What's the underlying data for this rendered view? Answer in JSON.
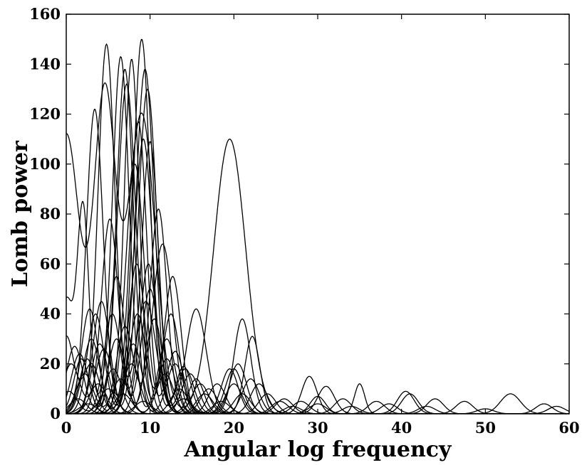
{
  "chart_data": {
    "type": "line",
    "title": "",
    "xlabel": "Angular log frequency",
    "ylabel": "Lomb power",
    "xlim": [
      0,
      60
    ],
    "ylim": [
      0,
      160
    ],
    "xticks": [
      0,
      10,
      20,
      30,
      40,
      50,
      60
    ],
    "yticks": [
      0,
      20,
      40,
      60,
      80,
      100,
      120,
      140,
      160
    ],
    "grid": false,
    "legend": "none",
    "line_color": "#000000",
    "series": [
      {
        "peaks": [
          [
            0,
            112,
            1.6
          ],
          [
            4.6,
            128,
            1.3
          ],
          [
            9,
            120,
            1.6
          ],
          [
            19.5,
            110,
            1.9
          ],
          [
            35,
            12,
            0.6
          ],
          [
            53,
            8,
            1.2
          ]
        ]
      },
      {
        "peaks": [
          [
            4.8,
            148,
            1.0
          ],
          [
            9.5,
            45,
            1.2
          ],
          [
            15.5,
            14,
            0.9
          ],
          [
            28,
            5,
            1.0
          ]
        ]
      },
      {
        "peaks": [
          [
            9.0,
            150,
            1.0
          ],
          [
            3.5,
            40,
            1.0
          ],
          [
            14,
            19,
            0.9
          ],
          [
            30,
            7,
            0.9
          ]
        ]
      },
      {
        "peaks": [
          [
            6.5,
            143,
            1.0
          ],
          [
            12,
            30,
            1.0
          ],
          [
            21,
            8,
            1.0
          ]
        ]
      },
      {
        "peaks": [
          [
            7.8,
            142,
            0.9
          ],
          [
            2.5,
            22,
            0.9
          ],
          [
            17,
            10,
            1.0
          ]
        ]
      },
      {
        "peaks": [
          [
            7.0,
            138,
            1.0
          ],
          [
            13,
            20,
            1.0
          ],
          [
            22,
            14,
            1.0
          ]
        ]
      },
      {
        "peaks": [
          [
            9.4,
            138,
            1.1
          ],
          [
            16,
            12,
            1.0
          ],
          [
            26,
            6,
            1.0
          ]
        ]
      },
      {
        "peaks": [
          [
            3.4,
            122,
            1.0
          ],
          [
            8.4,
            60,
            1.0
          ],
          [
            14.8,
            16,
            1.0
          ]
        ]
      },
      {
        "peaks": [
          [
            9.7,
            130,
            1.1
          ],
          [
            4,
            28,
            1.0
          ],
          [
            20,
            18,
            1.0
          ]
        ]
      },
      {
        "peaks": [
          [
            7.2,
            132,
            1.1
          ],
          [
            1.8,
            22,
            0.9
          ],
          [
            12.5,
            40,
            1.0
          ]
        ]
      },
      {
        "peaks": [
          [
            8.6,
            117,
            1.0
          ],
          [
            3,
            30,
            1.0
          ],
          [
            21,
            38,
            1.0
          ],
          [
            29,
            15,
            0.9
          ]
        ]
      },
      {
        "peaks": [
          [
            9.2,
            110,
            1.1
          ],
          [
            14.2,
            18,
            1.0
          ],
          [
            31,
            11,
            1.0
          ]
        ]
      },
      {
        "peaks": [
          [
            10.0,
            109,
            1.0
          ],
          [
            5.5,
            40,
            1.0
          ],
          [
            22.2,
            31,
            0.9
          ]
        ]
      },
      {
        "peaks": [
          [
            8.2,
            100,
            1.1
          ],
          [
            13,
            25,
            1.0
          ],
          [
            20.5,
            20,
            1.0
          ]
        ]
      },
      {
        "peaks": [
          [
            11.0,
            82,
            1.0
          ],
          [
            6,
            30,
            1.0
          ],
          [
            40.5,
            9,
            1.0
          ]
        ]
      },
      {
        "peaks": [
          [
            5.2,
            78,
            1.0
          ],
          [
            10,
            50,
            1.0
          ],
          [
            18,
            12,
            1.0
          ]
        ]
      },
      {
        "peaks": [
          [
            0,
            45,
            0.8
          ],
          [
            2,
            83,
            0.7
          ],
          [
            6,
            55,
            1.0
          ],
          [
            12,
            22,
            1.0
          ]
        ]
      },
      {
        "peaks": [
          [
            11.5,
            68,
            1.2
          ],
          [
            7,
            35,
            1.0
          ],
          [
            23,
            12,
            1.0
          ]
        ]
      },
      {
        "peaks": [
          [
            12.7,
            55,
            1.0
          ],
          [
            8.5,
            40,
            1.0
          ],
          [
            33,
            6,
            1.0
          ]
        ]
      },
      {
        "peaks": [
          [
            2.8,
            42,
            1.0
          ],
          [
            9.8,
            60,
            1.0
          ],
          [
            15.5,
            42,
            1.2
          ]
        ]
      },
      {
        "peaks": [
          [
            4.2,
            45,
            1.0
          ],
          [
            10.5,
            38,
            1.0
          ],
          [
            19.5,
            18,
            1.0
          ],
          [
            44,
            6,
            1.0
          ]
        ]
      },
      {
        "peaks": [
          [
            0,
            31,
            0.9
          ],
          [
            3,
            20,
            1.0
          ],
          [
            8,
            28,
            1.0
          ],
          [
            47.5,
            5,
            1.0
          ]
        ]
      },
      {
        "peaks": [
          [
            1,
            27,
            1.0
          ],
          [
            5.6,
            18,
            1.0
          ],
          [
            13.5,
            10,
            1.0
          ],
          [
            37,
            5,
            1.0
          ]
        ]
      },
      {
        "peaks": [
          [
            1.6,
            24,
            1.0
          ],
          [
            7.8,
            20,
            1.0
          ],
          [
            24,
            8,
            1.0
          ],
          [
            41,
            8,
            1.0
          ]
        ]
      },
      {
        "peaks": [
          [
            0.6,
            20,
            1.0
          ],
          [
            4.5,
            26,
            1.0
          ],
          [
            20,
            12,
            1.0
          ],
          [
            57,
            4,
            1.0
          ]
        ]
      },
      {
        "peaks": [
          [
            2.2,
            16,
            1.0
          ],
          [
            6.5,
            14,
            1.0
          ],
          [
            16.5,
            8,
            1.0
          ],
          [
            30,
            4,
            1.0
          ]
        ]
      },
      {
        "peaks": [
          [
            3.8,
            12,
            1.0
          ],
          [
            11.8,
            16,
            1.0
          ],
          [
            25.5,
            5,
            1.0
          ],
          [
            43,
            3,
            1.0
          ]
        ]
      },
      {
        "peaks": [
          [
            0.3,
            9,
            1.0
          ],
          [
            5,
            10,
            1.0
          ],
          [
            14,
            6,
            1.0
          ],
          [
            34,
            3,
            1.0
          ],
          [
            58.5,
            3,
            1.0
          ]
        ]
      },
      {
        "peaks": [
          [
            1.4,
            6,
            1.0
          ],
          [
            6.8,
            8,
            1.0
          ],
          [
            18.5,
            5,
            1.0
          ],
          [
            38.5,
            4,
            1.0
          ]
        ]
      },
      {
        "peaks": [
          [
            2.6,
            4,
            1.0
          ],
          [
            9.2,
            5,
            1.0
          ],
          [
            27,
            3,
            1.0
          ],
          [
            50,
            2,
            1.0
          ]
        ]
      }
    ]
  }
}
